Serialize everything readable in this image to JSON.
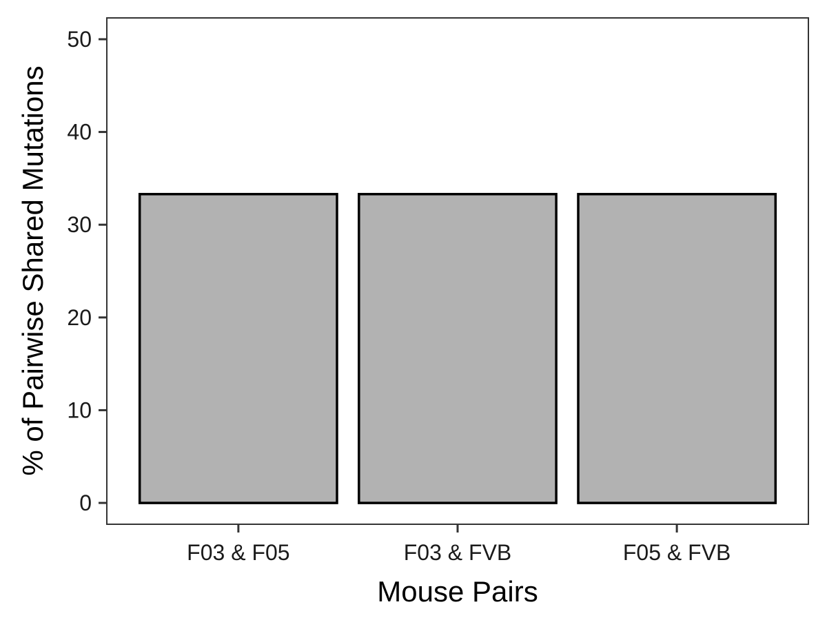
{
  "chart_data": {
    "type": "bar",
    "title": "",
    "xlabel": "Mouse Pairs",
    "ylabel": "% of Pairwise Shared Mutations",
    "categories": [
      "F03 & F05",
      "F03 & FVB",
      "F05 & FVB"
    ],
    "values": [
      33.3,
      33.3,
      33.3
    ],
    "ylim": [
      -2.3,
      52.3
    ],
    "yticks": [
      0,
      10,
      20,
      30,
      40,
      50
    ],
    "grid": false,
    "legend": "none",
    "colors": {
      "bar_fill": "#b2b2b2",
      "bar_stroke": "#000000",
      "panel_border": "#333333",
      "background": "#ffffff"
    }
  }
}
